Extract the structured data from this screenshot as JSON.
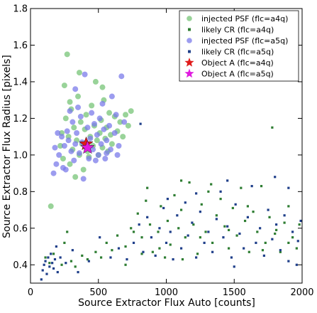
{
  "chart_data": {
    "type": "scatter",
    "xlabel": "Source Extractor Flux Auto [counts]",
    "ylabel": "Source Extractor Flux Radius [pixels]",
    "xlim": [
      0,
      2000
    ],
    "ylim": [
      0.3,
      1.8
    ],
    "x_ticks": [
      0,
      500,
      1000,
      1500,
      2000
    ],
    "y_ticks": [
      0.4,
      0.6,
      0.8,
      1.0,
      1.2,
      1.4,
      1.6,
      1.8
    ],
    "x_tick_labels": [
      "0",
      "500",
      "1000",
      "1500",
      "2000"
    ],
    "y_tick_labels": [
      "0.4",
      "0.6",
      "0.8",
      "1.0",
      "1.2",
      "1.4",
      "1.6",
      "1.8"
    ],
    "grid": false,
    "legend_position": "top-right",
    "series": [
      {
        "name": "injected PSF (flc=a4q)",
        "marker": "circle",
        "color": "#77c477",
        "points": [
          [
            150,
            0.72
          ],
          [
            220,
            1.05
          ],
          [
            230,
            1.12
          ],
          [
            240,
            0.98
          ],
          [
            260,
            1.2
          ],
          [
            270,
            1.55
          ],
          [
            280,
            1.1
          ],
          [
            290,
            0.95
          ],
          [
            300,
            1.25
          ],
          [
            310,
            1.03
          ],
          [
            320,
            1.15
          ],
          [
            330,
            0.88
          ],
          [
            340,
            1.08
          ],
          [
            350,
            1.32
          ],
          [
            360,
            1.0
          ],
          [
            370,
            1.18
          ],
          [
            380,
            1.06
          ],
          [
            390,
            0.92
          ],
          [
            400,
            1.14
          ],
          [
            410,
            1.22
          ],
          [
            420,
            1.02
          ],
          [
            430,
            0.99
          ],
          [
            440,
            1.1
          ],
          [
            450,
            1.27
          ],
          [
            460,
            1.05
          ],
          [
            470,
            1.16
          ],
          [
            480,
            1.4
          ],
          [
            490,
            1.08
          ],
          [
            500,
            1.0
          ],
          [
            510,
            1.12
          ],
          [
            520,
            1.19
          ],
          [
            530,
            1.04
          ],
          [
            540,
            1.3
          ],
          [
            550,
            1.09
          ],
          [
            560,
            1.15
          ],
          [
            570,
            1.02
          ],
          [
            580,
            1.23
          ],
          [
            590,
            1.11
          ],
          [
            600,
            1.06
          ],
          [
            620,
            1.21
          ],
          [
            640,
            1.13
          ],
          [
            660,
            1.18
          ],
          [
            680,
            1.1
          ],
          [
            700,
            1.22
          ],
          [
            720,
            1.16
          ],
          [
            740,
            1.24
          ],
          [
            250,
            1.38
          ],
          [
            360,
            1.45
          ],
          [
            530,
            1.37
          ],
          [
            290,
            1.29
          ]
        ]
      },
      {
        "name": "likely CR (flc=a4q)",
        "marker": "square",
        "color": "#2e7d32",
        "points": [
          [
            110,
            0.44
          ],
          [
            140,
            0.41
          ],
          [
            170,
            0.46
          ],
          [
            230,
            0.4
          ],
          [
            250,
            0.52
          ],
          [
            270,
            0.58
          ],
          [
            300,
            0.42
          ],
          [
            330,
            0.39
          ],
          [
            380,
            0.45
          ],
          [
            420,
            0.43
          ],
          [
            480,
            0.47
          ],
          [
            520,
            0.44
          ],
          [
            560,
            0.52
          ],
          [
            600,
            0.48
          ],
          [
            640,
            0.56
          ],
          [
            700,
            0.5
          ],
          [
            740,
            0.6
          ],
          [
            760,
            0.58
          ],
          [
            790,
            0.68
          ],
          [
            820,
            0.55
          ],
          [
            850,
            0.75
          ],
          [
            880,
            0.62
          ],
          [
            900,
            0.47
          ],
          [
            940,
            0.58
          ],
          [
            960,
            0.72
          ],
          [
            990,
            0.44
          ],
          [
            1010,
            0.64
          ],
          [
            1030,
            0.51
          ],
          [
            1060,
            0.78
          ],
          [
            1090,
            0.6
          ],
          [
            1110,
            0.7
          ],
          [
            1140,
            0.55
          ],
          [
            1170,
            0.85
          ],
          [
            1200,
            0.62
          ],
          [
            1230,
            0.46
          ],
          [
            1260,
            0.73
          ],
          [
            1290,
            0.58
          ],
          [
            1310,
            0.8
          ],
          [
            1340,
            0.52
          ],
          [
            1370,
            0.67
          ],
          [
            1400,
            0.76
          ],
          [
            1430,
            0.61
          ],
          [
            1460,
            0.49
          ],
          [
            1490,
            0.71
          ],
          [
            1520,
            0.56
          ],
          [
            1550,
            0.82
          ],
          [
            1580,
            0.64
          ],
          [
            1610,
            0.47
          ],
          [
            1640,
            0.69
          ],
          [
            1670,
            0.58
          ],
          [
            1700,
            0.83
          ],
          [
            1730,
            0.52
          ],
          [
            1760,
            0.66
          ],
          [
            1780,
            1.15
          ],
          [
            1810,
            0.59
          ],
          [
            1840,
            0.47
          ],
          [
            1870,
            0.63
          ],
          [
            1900,
            0.72
          ],
          [
            1930,
            0.55
          ],
          [
            1960,
            0.49
          ],
          [
            1980,
            0.62
          ],
          [
            860,
            0.82
          ],
          [
            1110,
            0.86
          ],
          [
            1330,
            0.84
          ],
          [
            950,
            0.49
          ],
          [
            1120,
            0.43
          ],
          [
            1250,
            0.55
          ],
          [
            1460,
            0.59
          ],
          [
            1710,
            0.48
          ],
          [
            1900,
            0.52
          ],
          [
            700,
            0.4
          ],
          [
            820,
            0.46
          ],
          [
            1600,
            0.72
          ],
          [
            1800,
            0.57
          ]
        ]
      },
      {
        "name": "injected PSF (flc=a5q)",
        "marker": "circle",
        "color": "#7b7bea",
        "points": [
          [
            170,
            0.9
          ],
          [
            190,
            0.95
          ],
          [
            210,
            1.0
          ],
          [
            230,
            1.1
          ],
          [
            250,
            1.05
          ],
          [
            260,
            0.92
          ],
          [
            270,
            1.13
          ],
          [
            280,
            1.08
          ],
          [
            300,
            1.02
          ],
          [
            310,
            1.18
          ],
          [
            320,
            0.97
          ],
          [
            330,
            1.06
          ],
          [
            340,
            1.12
          ],
          [
            360,
            1.01
          ],
          [
            370,
            1.21
          ],
          [
            380,
            1.07
          ],
          [
            390,
            0.87
          ],
          [
            400,
            1.44
          ],
          [
            410,
            1.04
          ],
          [
            420,
            1.15
          ],
          [
            430,
            0.98
          ],
          [
            440,
            1.09
          ],
          [
            460,
            1.03
          ],
          [
            470,
            1.17
          ],
          [
            490,
            1.11
          ],
          [
            500,
            1.0
          ],
          [
            510,
            1.2
          ],
          [
            520,
            1.06
          ],
          [
            540,
            1.14
          ],
          [
            550,
            0.98
          ],
          [
            560,
            1.08
          ],
          [
            580,
            1.16
          ],
          [
            590,
            1.03
          ],
          [
            600,
            1.32
          ],
          [
            620,
            1.12
          ],
          [
            630,
            1.22
          ],
          [
            650,
            1.05
          ],
          [
            670,
            1.43
          ],
          [
            690,
            1.18
          ],
          [
            180,
            1.04
          ],
          [
            200,
            1.12
          ],
          [
            290,
            1.24
          ],
          [
            350,
            1.26
          ],
          [
            450,
            1.23
          ],
          [
            530,
            1.28
          ],
          [
            240,
            0.93
          ],
          [
            480,
            0.97
          ],
          [
            640,
            1.0
          ],
          [
            330,
            1.36
          ],
          [
            560,
            1.01
          ]
        ]
      },
      {
        "name": "likely CR (flc=a5q)",
        "marker": "square",
        "color": "#1f3f8a",
        "points": [
          [
            80,
            0.32
          ],
          [
            90,
            0.37
          ],
          [
            100,
            0.4
          ],
          [
            110,
            0.42
          ],
          [
            120,
            0.35
          ],
          [
            130,
            0.44
          ],
          [
            140,
            0.39
          ],
          [
            150,
            0.46
          ],
          [
            160,
            0.41
          ],
          [
            170,
            0.38
          ],
          [
            180,
            0.43
          ],
          [
            190,
            0.5
          ],
          [
            200,
            0.36
          ],
          [
            220,
            0.44
          ],
          [
            260,
            0.41
          ],
          [
            310,
            0.48
          ],
          [
            350,
            0.36
          ],
          [
            430,
            0.42
          ],
          [
            510,
            0.55
          ],
          [
            590,
            0.44
          ],
          [
            650,
            0.49
          ],
          [
            710,
            0.43
          ],
          [
            760,
            0.52
          ],
          [
            800,
            0.62
          ],
          [
            830,
            0.47
          ],
          [
            860,
            0.66
          ],
          [
            890,
            0.55
          ],
          [
            920,
            0.45
          ],
          [
            950,
            0.6
          ],
          [
            980,
            0.71
          ],
          [
            1000,
            0.52
          ],
          [
            1030,
            0.58
          ],
          [
            1050,
            0.43
          ],
          [
            1080,
            0.67
          ],
          [
            1110,
            0.49
          ],
          [
            1140,
            0.74
          ],
          [
            1160,
            0.56
          ],
          [
            1190,
            0.63
          ],
          [
            1220,
            0.44
          ],
          [
            1250,
            0.69
          ],
          [
            1280,
            0.52
          ],
          [
            1310,
            0.58
          ],
          [
            1340,
            0.47
          ],
          [
            1370,
            0.65
          ],
          [
            1400,
            0.8
          ],
          [
            1420,
            0.55
          ],
          [
            1450,
            0.61
          ],
          [
            1480,
            0.44
          ],
          [
            1510,
            0.73
          ],
          [
            1540,
            0.57
          ],
          [
            1570,
            0.49
          ],
          [
            1600,
            0.66
          ],
          [
            1630,
            0.83
          ],
          [
            1660,
            0.52
          ],
          [
            1690,
            0.6
          ],
          [
            1720,
            0.45
          ],
          [
            1750,
            0.7
          ],
          [
            1780,
            0.54
          ],
          [
            1810,
            0.62
          ],
          [
            1840,
            0.48
          ],
          [
            1870,
            0.67
          ],
          [
            1900,
            0.42
          ],
          [
            1930,
            0.58
          ],
          [
            1960,
            0.4
          ],
          [
            1990,
            0.64
          ],
          [
            810,
            1.17
          ],
          [
            1010,
            0.76
          ],
          [
            1220,
            0.79
          ],
          [
            1450,
            0.86
          ],
          [
            1800,
            0.88
          ],
          [
            1900,
            0.82
          ],
          [
            1970,
            0.53
          ],
          [
            1500,
            0.39
          ]
        ]
      },
      {
        "name": "Object A (flc=a4q)",
        "marker": "star",
        "color": "#e01b1b",
        "points": [
          [
            410,
            1.06
          ]
        ]
      },
      {
        "name": "Object A (flc=a5q)",
        "marker": "star",
        "color": "#e01be0",
        "points": [
          [
            420,
            1.04
          ]
        ]
      }
    ]
  }
}
